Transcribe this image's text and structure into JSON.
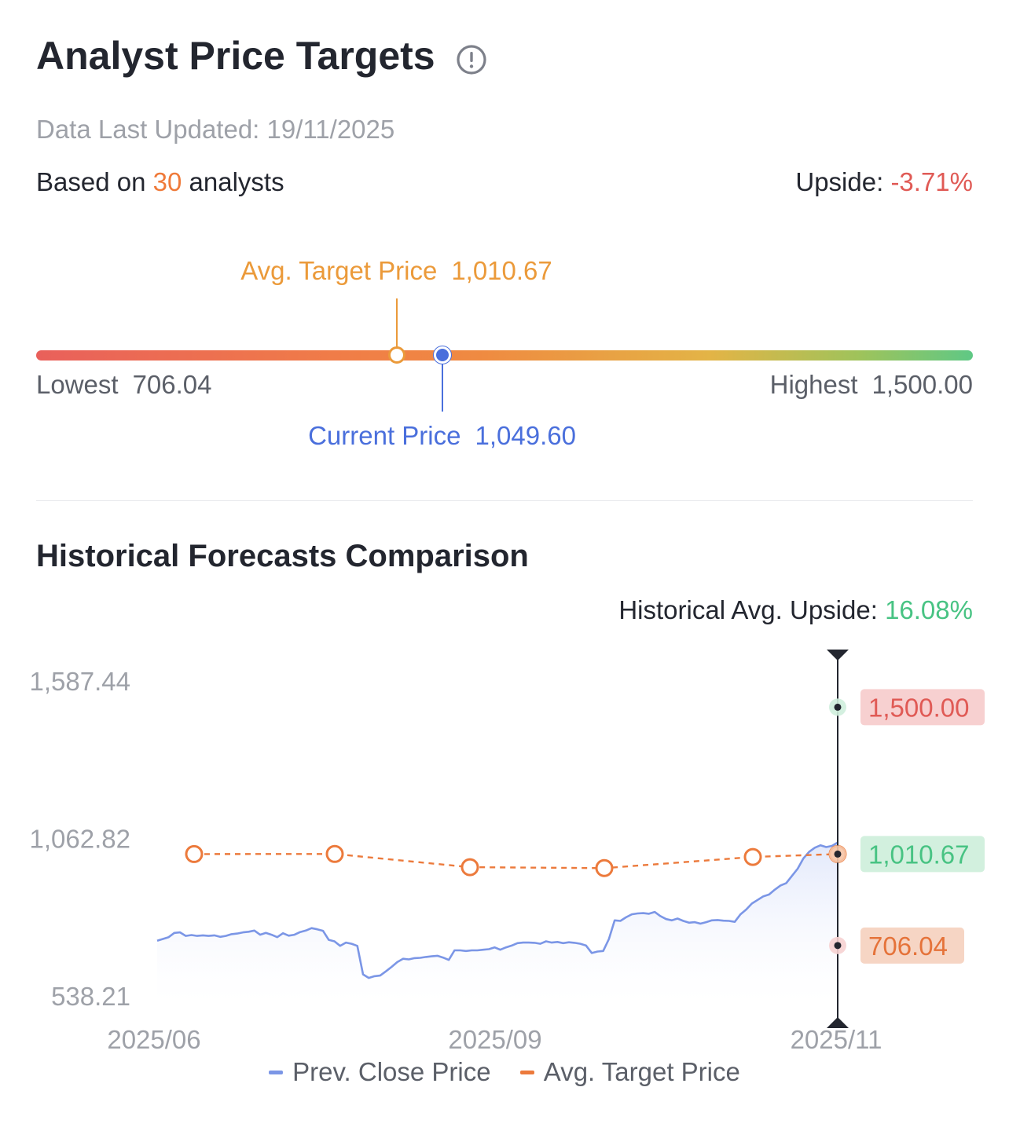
{
  "header": {
    "title": "Analyst Price Targets",
    "info_icon": "info-circle-icon",
    "updated": "Data Last Updated: 19/11/2025",
    "based_prefix": "Based on",
    "based_count": "30",
    "based_suffix": "analysts",
    "upside_label": "Upside:",
    "upside_value": "-3.71%"
  },
  "range": {
    "lowest_label": "Lowest",
    "lowest_value": "706.04",
    "highest_label": "Highest",
    "highest_value": "1,500.00",
    "avg_label": "Avg. Target Price",
    "avg_value": "1,010.67",
    "current_label": "Current Price",
    "current_value": "1,049.60",
    "low": 706.04,
    "high": 1500.0,
    "avg": 1010.67,
    "current": 1049.6
  },
  "history": {
    "title": "Historical Forecasts Comparison",
    "avg_upside_label": "Historical Avg. Upside:",
    "avg_upside_value": "16.08%"
  },
  "legend": {
    "close_label": "Prev. Close Price",
    "target_label": "Avg. Target Price"
  },
  "colors": {
    "close_line": "#7b96e6",
    "target_line": "#ec7a3c",
    "high_badge_bg": "#f7d0d0",
    "high_badge_text": "#e05a55",
    "avg_badge_bg": "#d2f0de",
    "avg_badge_text": "#48c383",
    "low_badge_bg": "#f6d5c4",
    "low_badge_text": "#e5733a"
  },
  "chart_data": {
    "type": "line",
    "y_ticks": [
      "1,587.44",
      "1,062.82",
      "538.21"
    ],
    "ylim": [
      538.21,
      1587.44
    ],
    "x_ticks": [
      "2025/06",
      "2025/09",
      "2025/11"
    ],
    "series": [
      {
        "name": "Prev. Close Price",
        "values": [
          722,
          728,
          734,
          748,
          750,
          738,
          741,
          738,
          740,
          738,
          740,
          735,
          738,
          744,
          746,
          750,
          752,
          756,
          742,
          748,
          742,
          734,
          747,
          739,
          742,
          751,
          756,
          764,
          760,
          755,
          725,
          720,
          705,
          716,
          712,
          705,
          610,
          598,
          604,
          606,
          620,
          635,
          651,
          662,
          660,
          664,
          665,
          668,
          670,
          672,
          666,
          658,
          690,
          690,
          688,
          690,
          690,
          692,
          694,
          700,
          692,
          700,
          706,
          714,
          716,
          716,
          715,
          712,
          720,
          716,
          718,
          714,
          717,
          715,
          712,
          706,
          681,
          686,
          688,
          728,
          790,
          788,
          800,
          810,
          813,
          814,
          812,
          818,
          804,
          794,
          790,
          796,
          788,
          782,
          784,
          779,
          784,
          790,
          791,
          789,
          788,
          785,
          810,
          826,
          846,
          858,
          870,
          876,
          892,
          906,
          914,
          938,
          962,
          996,
          1018,
          1032,
          1040,
          1034,
          1038,
          1049.6
        ]
      },
      {
        "name": "Avg. Target Price",
        "values": [
          1010.67,
          1011,
          1002,
          989,
          967,
          939,
          952,
          978,
          1007,
          1010.67
        ],
        "markers": [
          {
            "date": "2025/06",
            "value": 1010.67
          },
          {
            "date": "2025/07",
            "value": 1011
          },
          {
            "date": "2025/09",
            "value": 967
          },
          {
            "date": "2025/10",
            "value": 964
          },
          {
            "date": "2025/11",
            "value": 1001
          },
          {
            "date": "2025/11/19",
            "value": 1010.67
          }
        ]
      }
    ],
    "callouts": {
      "high": "1,500.00",
      "avg": "1,010.67",
      "low": "706.04"
    }
  }
}
